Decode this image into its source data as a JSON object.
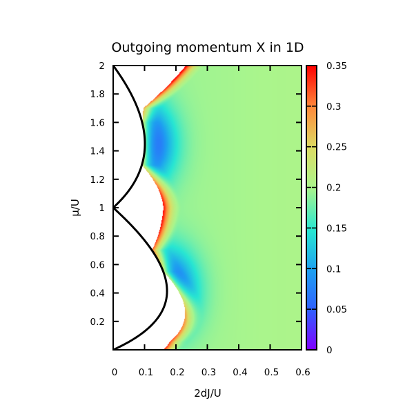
{
  "chart_data": {
    "type": "heatmap",
    "title": "Outgoing momentum X in 1D",
    "xlabel": "2dJ/U",
    "ylabel": "μ/U",
    "xlim": [
      0,
      0.6
    ],
    "ylim": [
      0,
      2
    ],
    "x_ticks": [
      "0",
      "0.1",
      "0.2",
      "0.3",
      "0.4",
      "0.5",
      "0.6"
    ],
    "y_ticks": [
      "0.2",
      "0.4",
      "0.6",
      "0.8",
      "1",
      "1.2",
      "1.4",
      "1.6",
      "1.8",
      "2"
    ],
    "colorbar": {
      "range": [
        0,
        0.35
      ],
      "ticks": [
        "0",
        "0.05",
        "0.1",
        "0.15",
        "0.2",
        "0.25",
        "0.3",
        "0.35"
      ],
      "colormap": "rainbow",
      "colors": [
        "#8000ff",
        "#1e90ff",
        "#28e6d2",
        "#aaf58c",
        "#ffb45a",
        "#ff0000"
      ]
    },
    "mott_lobes": [
      {
        "n": 1,
        "mu_range": [
          0,
          1
        ],
        "tip": {
          "x": 0.1716,
          "y": 0.4142
        }
      },
      {
        "n": 2,
        "mu_range": [
          1,
          2
        ],
        "tip": {
          "x": 0.101,
          "y": 1.449
        }
      }
    ],
    "grid": false,
    "legend": "colorbar-right"
  }
}
